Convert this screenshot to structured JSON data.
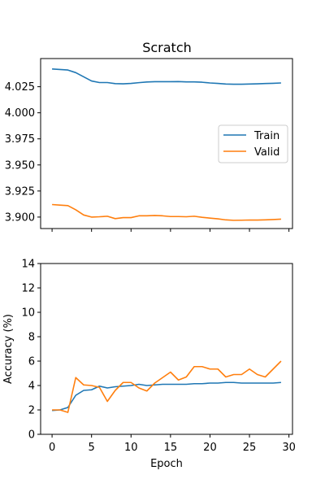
{
  "chart_data": [
    {
      "type": "line",
      "title": "Scratch",
      "xlabel": "",
      "ylabel": "",
      "xlim": [
        -1.45,
        30.45
      ],
      "ylim": [
        3.889,
        4.052
      ],
      "x_ticks": [
        0,
        5,
        10,
        15,
        20,
        25,
        30
      ],
      "y_ticks": [
        3.9,
        3.925,
        3.95,
        3.975,
        4.0,
        4.025
      ],
      "y_tick_labels": [
        "3.900",
        "3.925",
        "3.950",
        "3.975",
        "4.000",
        "4.025"
      ],
      "legend": {
        "placement": "center-right",
        "entries": [
          "Train",
          "Valid"
        ]
      },
      "series": [
        {
          "name": "Train",
          "color": "#1f77b4",
          "x": [
            0,
            1,
            2,
            3,
            4,
            5,
            6,
            7,
            8,
            9,
            10,
            11,
            12,
            13,
            14,
            15,
            16,
            17,
            18,
            19,
            20,
            21,
            22,
            23,
            24,
            25,
            26,
            27,
            28,
            29
          ],
          "y": [
            4.042,
            4.0415,
            4.041,
            4.0385,
            4.0345,
            4.0305,
            4.029,
            4.029,
            4.028,
            4.0278,
            4.0282,
            4.0289,
            4.0295,
            4.0298,
            4.0298,
            4.0298,
            4.0299,
            4.0296,
            4.0296,
            4.0293,
            4.0286,
            4.0282,
            4.0276,
            4.0274,
            4.0274,
            4.0276,
            4.0278,
            4.0281,
            4.0283,
            4.0286
          ]
        },
        {
          "name": "Valid",
          "color": "#ff7f0e",
          "x": [
            0,
            1,
            2,
            3,
            4,
            5,
            6,
            7,
            8,
            9,
            10,
            11,
            12,
            13,
            14,
            15,
            16,
            17,
            18,
            19,
            20,
            21,
            22,
            23,
            24,
            25,
            26,
            27,
            28,
            29
          ],
          "y": [
            3.912,
            3.9115,
            3.911,
            3.907,
            3.902,
            3.9,
            3.9003,
            3.9008,
            3.8985,
            3.8995,
            3.8995,
            3.9012,
            3.9012,
            3.9015,
            3.9012,
            3.9005,
            3.9005,
            3.9003,
            3.9008,
            3.8998,
            3.899,
            3.8983,
            3.8973,
            3.8969,
            3.897,
            3.8972,
            3.8971,
            3.8973,
            3.8976,
            3.898
          ]
        }
      ]
    },
    {
      "type": "line",
      "title": "",
      "xlabel": "Epoch",
      "ylabel": "Accuracy (%)",
      "xlim": [
        -1.45,
        30.45
      ],
      "ylim": [
        0,
        14
      ],
      "x_ticks": [
        0,
        5,
        10,
        15,
        20,
        25,
        30
      ],
      "y_ticks": [
        0,
        2,
        4,
        6,
        8,
        10,
        12,
        14
      ],
      "y_tick_labels": [
        "0",
        "2",
        "4",
        "6",
        "8",
        "10",
        "12",
        "14"
      ],
      "series": [
        {
          "name": "Train",
          "color": "#1f77b4",
          "x": [
            0,
            1,
            2,
            3,
            4,
            5,
            6,
            7,
            8,
            9,
            10,
            11,
            12,
            13,
            14,
            15,
            16,
            17,
            18,
            19,
            20,
            21,
            22,
            23,
            24,
            25,
            26,
            27,
            28,
            29
          ],
          "y": [
            1.95,
            2.0,
            2.2,
            3.2,
            3.6,
            3.65,
            3.95,
            3.8,
            3.9,
            3.95,
            4.0,
            4.1,
            4.0,
            4.05,
            4.1,
            4.1,
            4.1,
            4.1,
            4.15,
            4.15,
            4.2,
            4.2,
            4.25,
            4.25,
            4.2,
            4.2,
            4.2,
            4.2,
            4.2,
            4.25
          ]
        },
        {
          "name": "Valid",
          "color": "#ff7f0e",
          "x": [
            0,
            1,
            2,
            3,
            4,
            5,
            6,
            7,
            8,
            9,
            10,
            11,
            12,
            13,
            14,
            15,
            16,
            17,
            18,
            19,
            20,
            21,
            22,
            23,
            24,
            25,
            26,
            27,
            28,
            29
          ],
          "y": [
            2.0,
            2.0,
            1.8,
            4.65,
            4.05,
            4.0,
            3.85,
            2.7,
            3.6,
            4.25,
            4.25,
            3.8,
            3.55,
            4.2,
            4.65,
            5.1,
            4.45,
            4.7,
            5.55,
            5.55,
            5.35,
            5.35,
            4.7,
            4.9,
            4.9,
            5.35,
            4.9,
            4.7,
            5.35,
            6.0
          ]
        }
      ]
    }
  ]
}
